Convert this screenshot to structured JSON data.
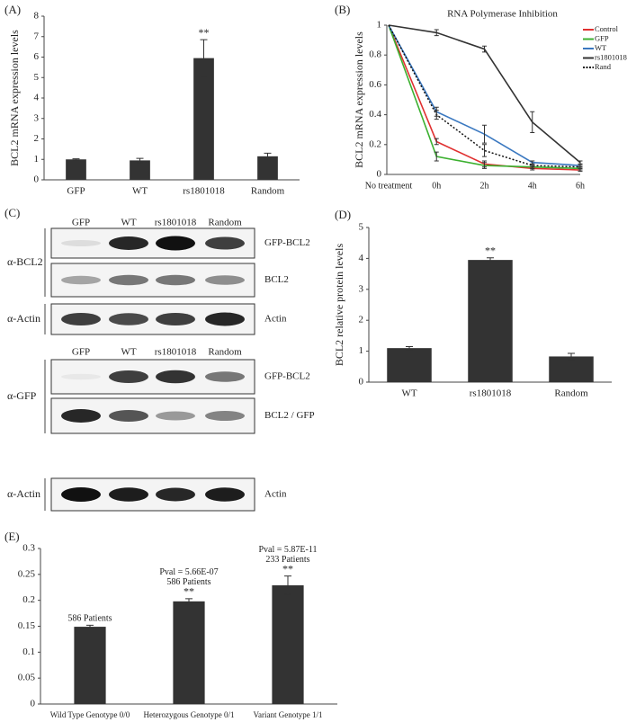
{
  "chart_data": [
    {
      "type": "bar",
      "panel": "(A)",
      "ylabel": "BCL2 mRNA expression levels",
      "categories": [
        "GFP",
        "WT",
        "rs1801018",
        "Random"
      ],
      "values": [
        1.0,
        0.95,
        5.95,
        1.15
      ],
      "errors": [
        0.03,
        0.1,
        0.9,
        0.15
      ],
      "annotations": [
        null,
        null,
        [
          "**"
        ],
        null
      ],
      "color": "#333333",
      "ylim": [
        0,
        8
      ],
      "yticks": [
        0,
        1,
        2,
        3,
        4,
        5,
        6,
        7,
        8
      ],
      "grid": false
    },
    {
      "type": "line",
      "panel": "(B)",
      "title": "RNA Polymerase Inhibition",
      "ylabel": "BCL2 mRNA expression levels",
      "categories": [
        "No treatment",
        "0h",
        "2h",
        "4h",
        "6h"
      ],
      "series": [
        {
          "name": "Control",
          "color": "#e03030",
          "values": [
            1,
            0.22,
            0.07,
            0.04,
            0.03
          ],
          "errors": [
            0,
            0.02,
            0.02,
            0.01,
            0.01
          ]
        },
        {
          "name": "GFP",
          "color": "#3cb030",
          "values": [
            1,
            0.12,
            0.06,
            0.05,
            0.04
          ],
          "errors": [
            0,
            0.03,
            0.02,
            0.01,
            0.01
          ]
        },
        {
          "name": "WT",
          "color": "#3a78c0",
          "values": [
            1,
            0.42,
            0.27,
            0.08,
            0.06
          ],
          "errors": [
            0,
            0.03,
            0.06,
            0.01,
            0.01
          ]
        },
        {
          "name": "rs1801018",
          "color": "#333333",
          "values": [
            1,
            0.95,
            0.84,
            0.35,
            0.08
          ],
          "errors": [
            0,
            0.02,
            0.02,
            0.07,
            0.01
          ]
        },
        {
          "name": "Rand",
          "color": "#111111",
          "dash": "dotted",
          "values": [
            1,
            0.4,
            0.16,
            0.06,
            0.05
          ],
          "errors": [
            0,
            0.03,
            0.04,
            0.01,
            0.01
          ]
        }
      ],
      "ylim": [
        0,
        1
      ],
      "yticks": [
        0,
        0.2,
        0.4,
        0.6,
        0.8,
        1
      ],
      "grid": false,
      "legend": "top-right"
    },
    {
      "type": "bar",
      "panel": "(D)",
      "ylabel": "BCL2 relative protein levels",
      "categories": [
        "WT",
        "rs1801018",
        "Random"
      ],
      "values": [
        1.1,
        3.95,
        0.83
      ],
      "errors": [
        0.05,
        0.07,
        0.1
      ],
      "annotations": [
        null,
        [
          "**"
        ],
        null
      ],
      "color": "#333333",
      "ylim": [
        0,
        5
      ],
      "yticks": [
        0,
        1,
        2,
        3,
        4,
        5
      ],
      "grid": false
    },
    {
      "type": "bar",
      "panel": "(E)",
      "categories": [
        "Wild Type Genotype 0/0",
        "Heterozygous Genotype 0/1",
        "Variant Genotype 1/1"
      ],
      "values": [
        0.149,
        0.198,
        0.229
      ],
      "errors": [
        0.003,
        0.005,
        0.018
      ],
      "annotations": [
        [
          "586 Patients"
        ],
        [
          "Pval = 5.66E-07",
          "586 Patients",
          "**"
        ],
        [
          "Pval = 5.87E-11",
          "233 Patients",
          "**"
        ]
      ],
      "color": "#333333",
      "ylim": [
        0,
        0.3
      ],
      "yticks": [
        0,
        0.05,
        0.1,
        0.15,
        0.2,
        0.25,
        0.3
      ],
      "grid": false
    }
  ],
  "blot": {
    "panel": "(C)",
    "sections": [
      {
        "lanes": [
          "GFP",
          "WT",
          "rs1801018",
          "Random"
        ],
        "groups": [
          {
            "antibody": "α-BCL2",
            "rows": [
              "GFP-BCL2",
              "BCL2"
            ]
          },
          {
            "antibody": "α-Actin",
            "rows": [
              "Actin"
            ]
          }
        ]
      },
      {
        "lanes": [
          "GFP",
          "WT",
          "rs1801018",
          "Random"
        ],
        "groups": [
          {
            "antibody": "α-GFP",
            "rows": [
              "GFP-BCL2",
              "BCL2 / GFP"
            ]
          },
          {
            "antibody": "α-Actin",
            "rows": [
              "Actin"
            ]
          }
        ]
      }
    ]
  }
}
